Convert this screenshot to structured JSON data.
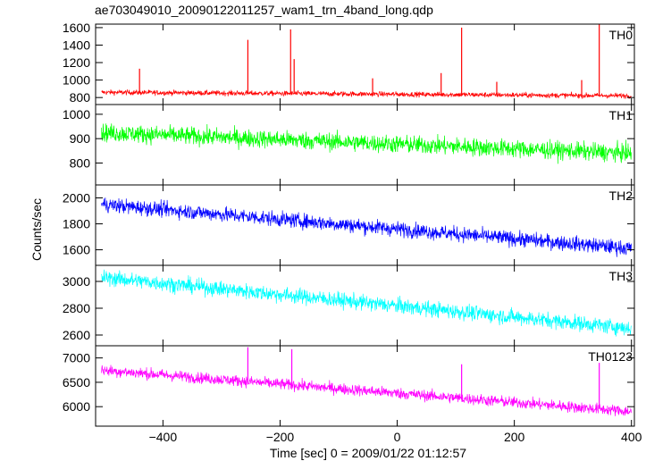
{
  "chart_data": {
    "type": "line",
    "title": "ae703049010_20090122011257_wam1_trn_4band_long.qdp",
    "xlabel": "Time [sec] 0 = 2009/01/22 01:12:57",
    "ylabel": "Counts/sec",
    "xlim": [
      -515,
      405
    ],
    "x_ticks": [
      -400,
      -200,
      0,
      200,
      400
    ],
    "panels": [
      {
        "name": "TH0",
        "color": "#ff0000",
        "ylim": [
          720,
          1640
        ],
        "y_ticks": [
          800,
          1000,
          1200,
          1400,
          1600
        ],
        "trend": {
          "x": [
            -505,
            400
          ],
          "y": [
            860,
            820
          ]
        },
        "noise": 28,
        "spikes": [
          {
            "x": -440,
            "y": 1130
          },
          {
            "x": -255,
            "y": 1460
          },
          {
            "x": -182,
            "y": 1580
          },
          {
            "x": -176,
            "y": 1240
          },
          {
            "x": -42,
            "y": 1020
          },
          {
            "x": 75,
            "y": 1080
          },
          {
            "x": 110,
            "y": 1600
          },
          {
            "x": 170,
            "y": 980
          },
          {
            "x": 315,
            "y": 1000
          },
          {
            "x": 345,
            "y": 1640
          }
        ]
      },
      {
        "name": "TH1",
        "color": "#00ff00",
        "ylim": [
          710,
          1040
        ],
        "y_ticks": [
          800,
          900,
          1000
        ],
        "trend": {
          "x": [
            -505,
            400
          ],
          "y": [
            925,
            840
          ]
        },
        "noise": 35,
        "spikes": []
      },
      {
        "name": "TH2",
        "color": "#0000ff",
        "ylim": [
          1480,
          2100
        ],
        "y_ticks": [
          1600,
          1800,
          2000
        ],
        "trend": {
          "x": [
            -505,
            400
          ],
          "y": [
            1950,
            1610
          ]
        },
        "noise": 55,
        "spikes": []
      },
      {
        "name": "TH3",
        "color": "#00ffff",
        "ylim": [
          2520,
          3120
        ],
        "y_ticks": [
          2600,
          2800,
          3000
        ],
        "trend": {
          "x": [
            -505,
            400
          ],
          "y": [
            3030,
            2650
          ]
        },
        "noise": 55,
        "spikes": []
      },
      {
        "name": "TH0123",
        "color": "#ff00ff",
        "ylim": [
          5600,
          7250
        ],
        "y_ticks": [
          6000,
          6500,
          7000
        ],
        "trend": {
          "x": [
            -505,
            400
          ],
          "y": [
            6750,
            5900
          ]
        },
        "noise": 110,
        "spikes": [
          {
            "x": -255,
            "y": 7220
          },
          {
            "x": -180,
            "y": 7180
          },
          {
            "x": 110,
            "y": 6870
          },
          {
            "x": 345,
            "y": 6900
          }
        ]
      }
    ]
  }
}
